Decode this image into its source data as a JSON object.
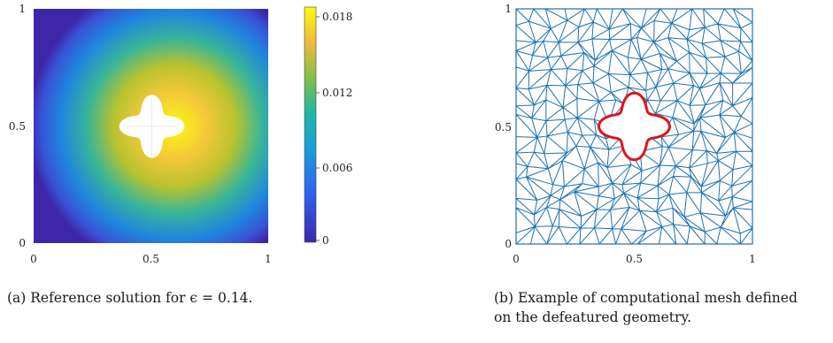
{
  "panel_a": {
    "x_ticks": [
      "0",
      "0.5",
      "1"
    ],
    "y_ticks": [
      "0",
      "0.5",
      "1"
    ],
    "colorbar": {
      "ticks": [
        "0",
        "0.006",
        "0.012",
        "0.018"
      ],
      "colormap": "parula",
      "colors": [
        "#3e26a8",
        "#1f80e0",
        "#24b69c",
        "#8ebf3f",
        "#f4b53e",
        "#f9fb0e"
      ]
    },
    "caption": "(a) Reference solution for ϵ = 0.14."
  },
  "panel_b": {
    "x_ticks": [
      "0",
      "0.5",
      "1"
    ],
    "y_ticks": [
      "0",
      "0.5",
      "1"
    ],
    "mesh_color": "#1f6fb0",
    "boundary_color": "#e0141b",
    "caption_line1": "(b) Example of computational mesh defined",
    "caption_line2": "on the defeatured geometry."
  }
}
